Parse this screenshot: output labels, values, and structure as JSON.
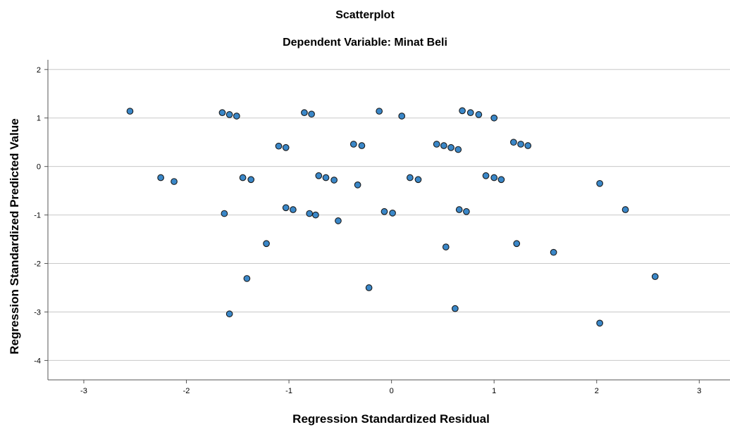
{
  "chart_data": {
    "type": "scatter",
    "title": "Scatterplot",
    "subtitle": "Dependent Variable: Minat Beli",
    "xlabel": "Regression Standardized Residual",
    "ylabel": "Regression Standardized Predicted Value",
    "xlim": [
      -3.35,
      3.3
    ],
    "ylim": [
      -4.4,
      2.2
    ],
    "xticks": [
      "-3",
      "-2",
      "-1",
      "0",
      "1",
      "2",
      "3"
    ],
    "yticks": [
      "2",
      "1",
      "0",
      "-1",
      "-2",
      "-3",
      "-4"
    ],
    "grid": "horizontal",
    "point_color": "#3a87c8",
    "points": [
      [
        -2.55,
        1.14
      ],
      [
        -2.25,
        -0.23
      ],
      [
        -2.12,
        -0.31
      ],
      [
        -1.65,
        1.11
      ],
      [
        -1.58,
        1.07
      ],
      [
        -1.51,
        1.04
      ],
      [
        -1.63,
        -0.97
      ],
      [
        -1.45,
        -0.23
      ],
      [
        -1.37,
        -0.27
      ],
      [
        -1.58,
        -3.04
      ],
      [
        -1.41,
        -2.31
      ],
      [
        -1.22,
        -1.59
      ],
      [
        -1.1,
        0.42
      ],
      [
        -1.03,
        0.39
      ],
      [
        -1.03,
        -0.85
      ],
      [
        -0.96,
        -0.89
      ],
      [
        -0.85,
        1.11
      ],
      [
        -0.78,
        1.08
      ],
      [
        -0.8,
        -0.97
      ],
      [
        -0.74,
        -1.0
      ],
      [
        -0.71,
        -0.19
      ],
      [
        -0.64,
        -0.23
      ],
      [
        -0.56,
        -0.28
      ],
      [
        -0.52,
        -1.12
      ],
      [
        -0.37,
        0.46
      ],
      [
        -0.29,
        0.43
      ],
      [
        -0.33,
        -0.38
      ],
      [
        -0.22,
        -2.5
      ],
      [
        -0.12,
        1.14
      ],
      [
        -0.07,
        -0.93
      ],
      [
        0.01,
        -0.96
      ],
      [
        0.1,
        1.04
      ],
      [
        0.18,
        -0.23
      ],
      [
        0.26,
        -0.27
      ],
      [
        0.44,
        0.46
      ],
      [
        0.51,
        0.43
      ],
      [
        0.58,
        0.39
      ],
      [
        0.65,
        0.35
      ],
      [
        0.53,
        -1.66
      ],
      [
        0.62,
        -2.93
      ],
      [
        0.66,
        -0.89
      ],
      [
        0.73,
        -0.93
      ],
      [
        0.69,
        1.15
      ],
      [
        0.77,
        1.11
      ],
      [
        0.85,
        1.07
      ],
      [
        1.0,
        1.0
      ],
      [
        0.92,
        -0.19
      ],
      [
        1.0,
        -0.23
      ],
      [
        1.07,
        -0.27
      ],
      [
        1.19,
        0.5
      ],
      [
        1.26,
        0.46
      ],
      [
        1.33,
        0.43
      ],
      [
        1.22,
        -1.59
      ],
      [
        1.58,
        -1.77
      ],
      [
        2.03,
        -0.35
      ],
      [
        2.28,
        -0.89
      ],
      [
        2.57,
        -2.27
      ],
      [
        2.03,
        -3.23
      ]
    ]
  }
}
